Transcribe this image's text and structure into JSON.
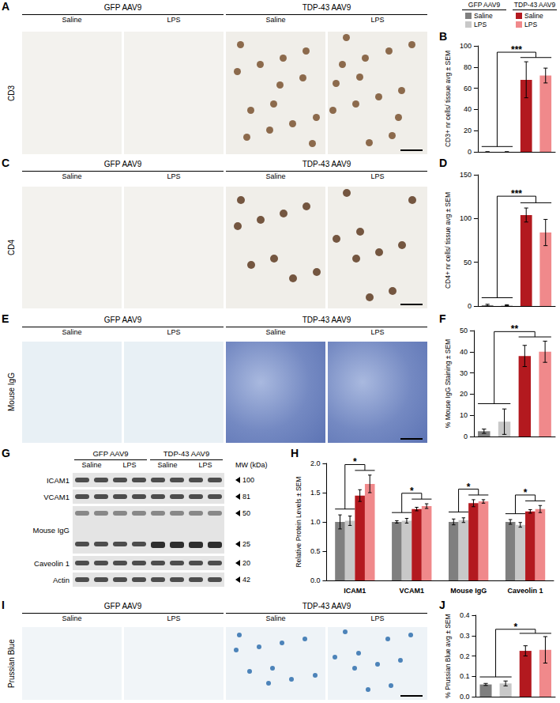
{
  "legend": [
    {
      "group": "GFP AAV9",
      "items": [
        {
          "name": "Saline",
          "color": "#7f7f7f"
        },
        {
          "name": "LPS",
          "color": "#c8c8c8"
        }
      ]
    },
    {
      "group": "TDP-43 AAV9",
      "items": [
        {
          "name": "Saline",
          "color": "#b3191f"
        },
        {
          "name": "LPS",
          "color": "#f0898b"
        }
      ]
    }
  ],
  "image_rows": [
    {
      "panel": "A",
      "stain": "CD3",
      "groups": [
        {
          "name": "GFP AAV9",
          "conditions": [
            "Saline",
            "LPS"
          ]
        },
        {
          "name": "TDP-43 AAV9",
          "conditions": [
            "Saline",
            "LPS"
          ]
        }
      ]
    },
    {
      "panel": "C",
      "stain": "CD4",
      "groups": [
        {
          "name": "GFP AAV9",
          "conditions": [
            "Saline",
            "LPS"
          ]
        },
        {
          "name": "TDP-43 AAV9",
          "conditions": [
            "Saline",
            "LPS"
          ]
        }
      ]
    },
    {
      "panel": "E",
      "stain": "Mouse IgG",
      "groups": [
        {
          "name": "GFP AAV9",
          "conditions": [
            "Saline",
            "LPS"
          ]
        },
        {
          "name": "TDP-43 AAV9",
          "conditions": [
            "Saline",
            "LPS"
          ]
        }
      ]
    },
    {
      "panel": "I",
      "stain": "Prussian Blue",
      "groups": [
        {
          "name": "GFP AAV9",
          "conditions": [
            "Saline",
            "LPS"
          ]
        },
        {
          "name": "TDP-43 AAV9",
          "conditions": [
            "Saline",
            "LPS"
          ]
        }
      ]
    }
  ],
  "blot": {
    "panel": "G",
    "groups": [
      {
        "name": "GFP AAV9",
        "conditions": [
          "Saline",
          "LPS"
        ]
      },
      {
        "name": "TDP-43 AAV9",
        "conditions": [
          "Saline",
          "LPS"
        ]
      }
    ],
    "mw_label": "MW (kDa)",
    "rows": [
      {
        "label": "ICAM1",
        "kda": [
          100
        ]
      },
      {
        "label": "VCAM1",
        "kda": [
          81
        ]
      },
      {
        "label": "Mouse IgG",
        "kda": [
          50,
          25
        ]
      },
      {
        "label": "Caveolin 1",
        "kda": [
          20
        ]
      },
      {
        "label": "Actin",
        "kda": [
          42
        ]
      }
    ]
  },
  "chart_data": [
    {
      "panel": "B",
      "type": "bar",
      "y_label": "CD3+ nr cells/ tissue avg ± SEM",
      "categories": [
        null,
        null,
        null,
        null
      ],
      "values": [
        0,
        0,
        68,
        72
      ],
      "errors": [
        0,
        0,
        17,
        7
      ],
      "colors": [
        "#7f7f7f",
        "#c8c8c8",
        "#b3191f",
        "#f0898b"
      ],
      "ylim": [
        0,
        100
      ],
      "yticks": [
        0,
        20,
        40,
        60,
        80,
        100
      ],
      "significance": "***",
      "tick_labels": "y",
      "grid": false
    },
    {
      "panel": "D",
      "type": "bar",
      "y_label": "CD4+ nr cells/ tissue avg ± SEM",
      "categories": [
        null,
        null,
        null,
        null
      ],
      "values": [
        1,
        1,
        104,
        84
      ],
      "errors": [
        1,
        0.5,
        8,
        15
      ],
      "colors": [
        "#7f7f7f",
        "#c8c8c8",
        "#b3191f",
        "#f0898b"
      ],
      "ylim": [
        0,
        150
      ],
      "yticks": [
        0,
        50,
        100,
        150
      ],
      "significance": "***",
      "tick_labels": "y",
      "grid": false
    },
    {
      "panel": "F",
      "type": "bar",
      "y_label": "% Mouse IgG Staining ± SEM",
      "categories": [
        null,
        null,
        null,
        null
      ],
      "values": [
        2.5,
        7,
        38,
        40
      ],
      "errors": [
        1,
        6,
        5,
        5
      ],
      "colors": [
        "#7f7f7f",
        "#c8c8c8",
        "#b3191f",
        "#f0898b"
      ],
      "ylim": [
        0,
        50
      ],
      "yticks": [
        0,
        10,
        20,
        30,
        40,
        50
      ],
      "significance": "**",
      "tick_labels": "y",
      "grid": false
    },
    {
      "panel": "H",
      "type": "bar",
      "y_label": "Relative Protein Levels ± SEM",
      "categories": [
        "ICAM1",
        "VCAM1",
        "Mouse IgG",
        "Caveolin 1"
      ],
      "series": [
        {
          "color": "#7f7f7f",
          "values": [
            1.0,
            1.0,
            1.0,
            1.0
          ],
          "errors": [
            0.12,
            0.02,
            0.05,
            0.04
          ]
        },
        {
          "color": "#c8c8c8",
          "values": [
            1.02,
            1.02,
            1.03,
            0.95
          ],
          "errors": [
            0.08,
            0.04,
            0.04,
            0.04
          ]
        },
        {
          "color": "#b3191f",
          "values": [
            1.45,
            1.22,
            1.32,
            1.18
          ],
          "errors": [
            0.1,
            0.03,
            0.06,
            0.03
          ]
        },
        {
          "color": "#f0898b",
          "values": [
            1.65,
            1.27,
            1.35,
            1.22
          ],
          "errors": [
            0.15,
            0.04,
            0.03,
            0.06
          ]
        }
      ],
      "ylim": [
        0,
        2
      ],
      "yticks": [
        {
          "value": 0,
          "label": "0.0"
        },
        {
          "value": 0.5,
          "label": "0.5"
        },
        {
          "value": 1,
          "label": "1.0"
        },
        {
          "value": 1.5,
          "label": "1.5"
        },
        {
          "value": 2,
          "label": "2.0"
        }
      ],
      "significance": [
        "*",
        "*",
        "*",
        "*"
      ],
      "grid": false
    },
    {
      "panel": "J",
      "type": "bar",
      "y_label": "% Prussian Blue avg ± SEM",
      "categories": [
        null,
        null,
        null,
        null
      ],
      "values": [
        0.06,
        0.065,
        0.225,
        0.23
      ],
      "errors": [
        0.005,
        0.012,
        0.025,
        0.065
      ],
      "colors": [
        "#7f7f7f",
        "#c8c8c8",
        "#b3191f",
        "#f0898b"
      ],
      "ylim": [
        0,
        0.4
      ],
      "yticks": [
        {
          "value": 0,
          "label": "0.0"
        },
        {
          "value": 0.1,
          "label": "0.1"
        },
        {
          "value": 0.2,
          "label": "0.2"
        },
        {
          "value": 0.3,
          "label": "0.3"
        },
        {
          "value": 0.4,
          "label": "0.4"
        }
      ],
      "significance": "*",
      "tick_labels": "y",
      "grid": false
    }
  ]
}
